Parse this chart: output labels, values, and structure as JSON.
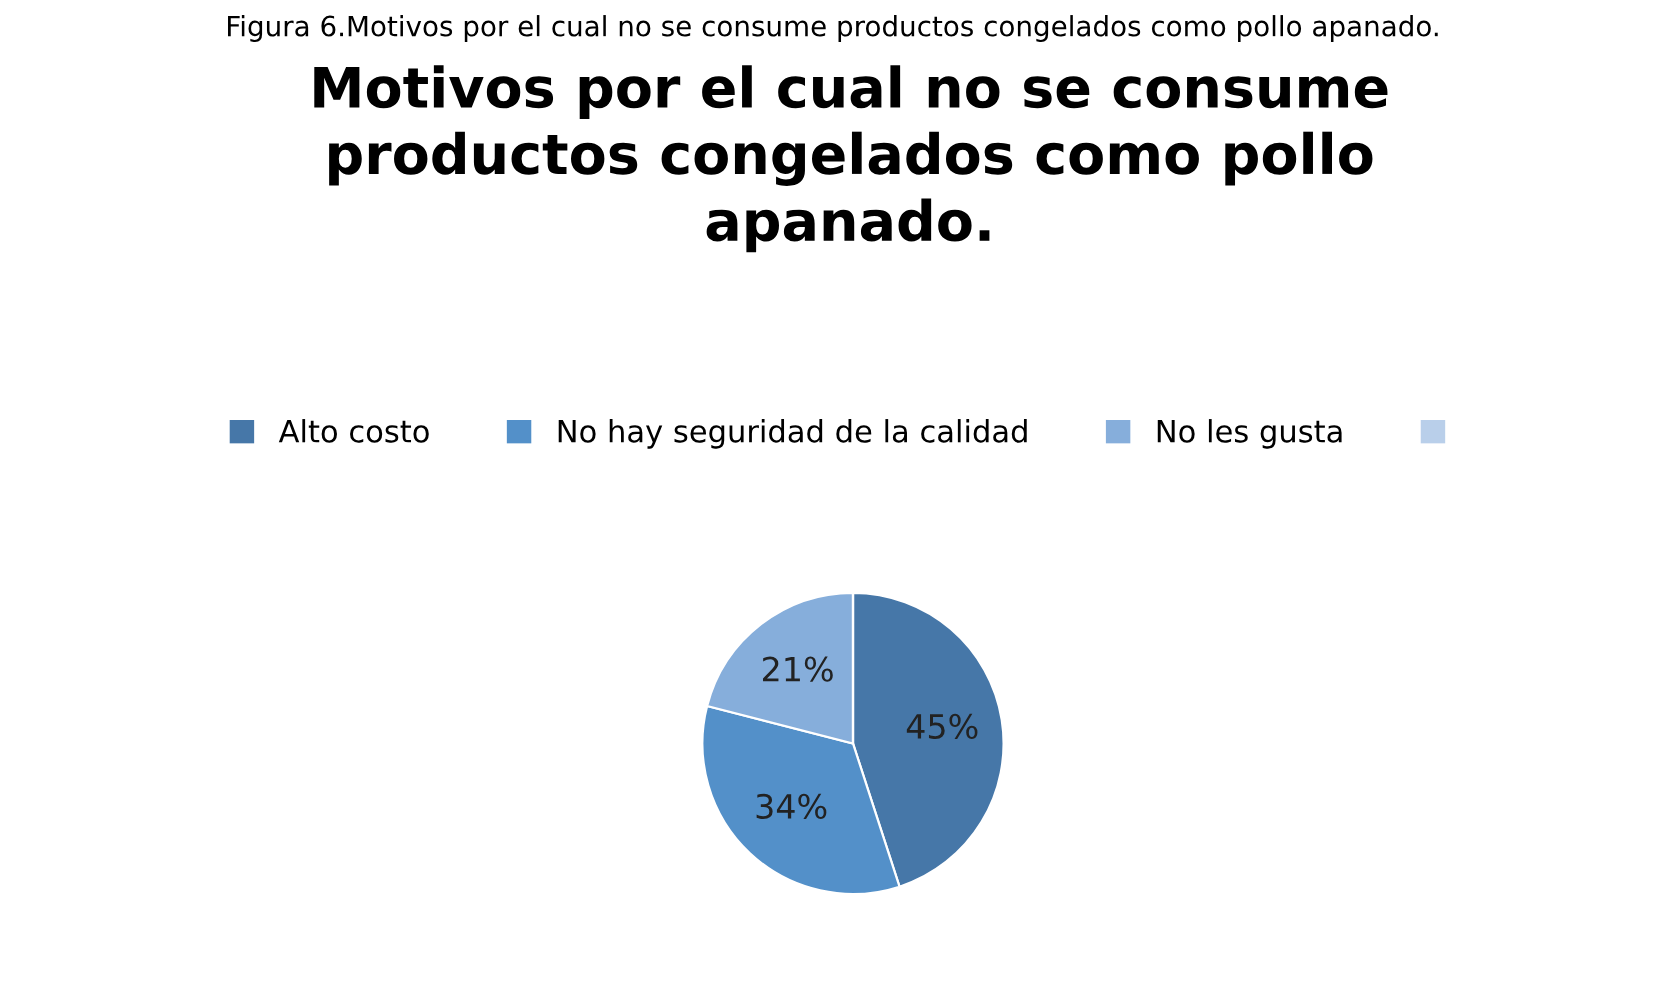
{
  "chart_data": {
    "type": "pie",
    "title": "Motivos por el cual no se consume\nproductos congelados como pollo\napanado.",
    "annotations": [
      "Figura 6.Motivos por el cual no se consume productos congelados como pollo apanado."
    ],
    "categories": [
      "Alto costo",
      "No hay seguridad de la calidad",
      "No les gusta",
      null
    ],
    "values": [
      45,
      34,
      21,
      0
    ],
    "colors": [
      "#4677a8",
      "#5390c9",
      "#86aedb",
      "#b9cfea"
    ],
    "value_labels": [
      "45%",
      "34%",
      "21%",
      null
    ],
    "legend": "top"
  }
}
